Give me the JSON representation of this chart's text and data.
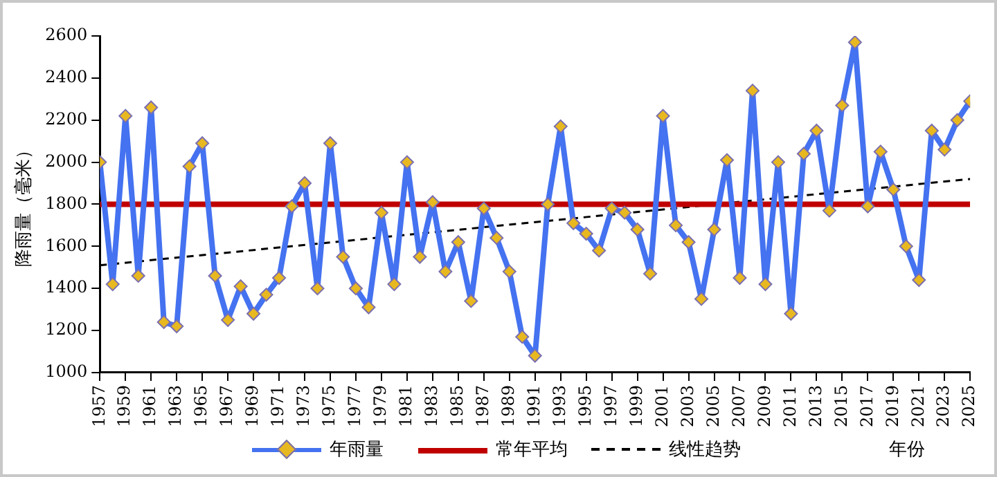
{
  "chart_data": {
    "type": "line",
    "ylabel": "降雨量（毫米）",
    "xlabel": "年份",
    "xlim": [
      1957,
      2025
    ],
    "xticks": [
      1957,
      1959,
      1961,
      1963,
      1965,
      1967,
      1969,
      1971,
      1973,
      1975,
      1977,
      1979,
      1981,
      1983,
      1985,
      1987,
      1989,
      1991,
      1993,
      1995,
      1997,
      1999,
      2001,
      2003,
      2005,
      2007,
      2009,
      2011,
      2013,
      2015,
      2017,
      2019,
      2021,
      2023,
      2025
    ],
    "ylim": [
      1000,
      2600
    ],
    "yticks": [
      1000,
      1200,
      1400,
      1600,
      1800,
      2000,
      2200,
      2400,
      2600
    ],
    "grid": false,
    "legend": "bottom",
    "series": [
      {
        "name": "年雨量",
        "color": "#4472f0",
        "marker": "diamond",
        "line_style": "solid",
        "x": [
          1957,
          1958,
          1959,
          1960,
          1961,
          1962,
          1963,
          1964,
          1965,
          1966,
          1967,
          1968,
          1969,
          1970,
          1971,
          1972,
          1973,
          1974,
          1975,
          1976,
          1977,
          1978,
          1979,
          1980,
          1981,
          1982,
          1983,
          1984,
          1985,
          1986,
          1987,
          1988,
          1989,
          1990,
          1991,
          1992,
          1993,
          1994,
          1995,
          1996,
          1997,
          1998,
          1999,
          2000,
          2001,
          2002,
          2003,
          2004,
          2005,
          2006,
          2007,
          2008,
          2009,
          2010,
          2011,
          2012,
          2013,
          2014,
          2015,
          2016,
          2017,
          2018,
          2019,
          2020,
          2021,
          2022,
          2023,
          2024,
          2025
        ],
        "values": [
          2000,
          1420,
          2220,
          1460,
          2260,
          1240,
          1220,
          1980,
          2090,
          1460,
          1250,
          1410,
          1280,
          1370,
          1450,
          1790,
          1900,
          1400,
          2090,
          1550,
          1400,
          1310,
          1760,
          1420,
          2000,
          1550,
          1810,
          1480,
          1620,
          1340,
          1780,
          1640,
          1480,
          1170,
          1080,
          1800,
          2170,
          1710,
          1660,
          1580,
          1780,
          1760,
          1680,
          1470,
          2220,
          1700,
          1620,
          1350,
          1680,
          2010,
          1450,
          2340,
          1420,
          2000,
          1280,
          2040,
          2150,
          1770,
          2270,
          2570,
          1790,
          2050,
          1870,
          1600,
          1440,
          2150,
          2060,
          2200,
          2290
        ]
      },
      {
        "name": "常年平均",
        "color": "#c00000",
        "marker": "none",
        "line_style": "solid",
        "x": [
          1957,
          2025
        ],
        "values": [
          1800,
          1800
        ]
      },
      {
        "name": "线性趋势",
        "color": "#000000",
        "marker": "none",
        "line_style": "dashed",
        "x": [
          1957,
          2025
        ],
        "values": [
          1510,
          1920
        ]
      }
    ]
  }
}
